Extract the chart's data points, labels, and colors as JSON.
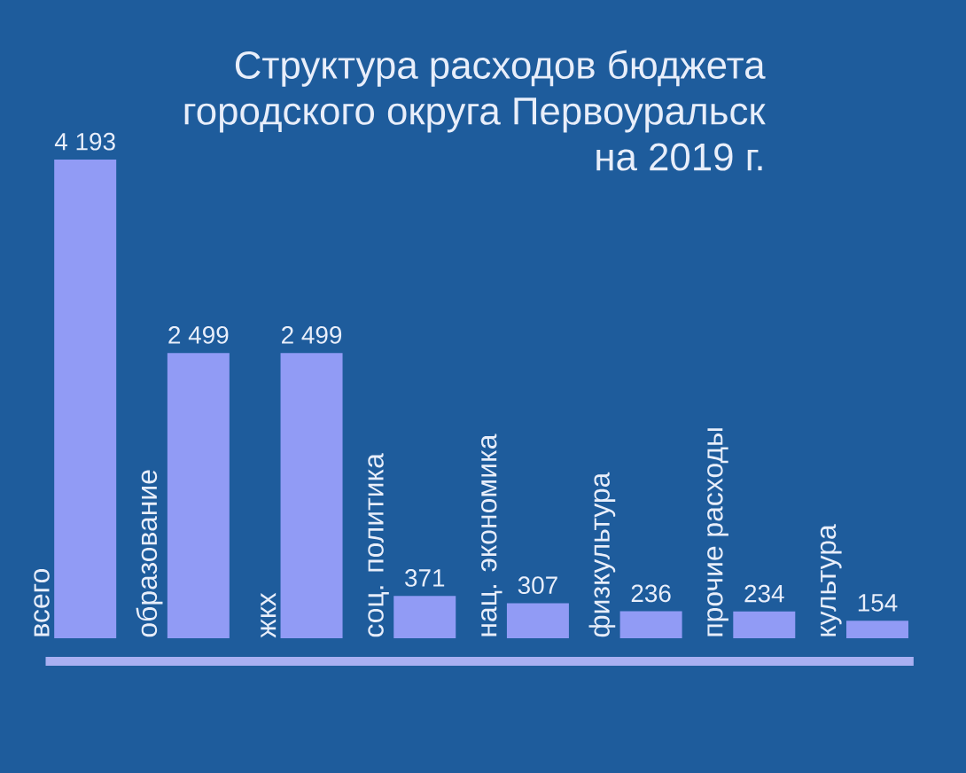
{
  "chart_data": {
    "type": "bar",
    "title": "Структура расходов бюджета городского округа Первоуральск на 2019 г.",
    "categories": [
      "всего",
      "образование",
      "жкх",
      "соц. политика",
      "нац. экономика",
      "физкультура",
      "прочие расходы",
      "культура"
    ],
    "values": [
      4193,
      2499,
      2499,
      371,
      307,
      236,
      234,
      154
    ],
    "value_labels": [
      "4 193",
      "2 499",
      "2 499",
      "371",
      "307",
      "236",
      "234",
      "154"
    ],
    "color": "#919bf5"
  }
}
